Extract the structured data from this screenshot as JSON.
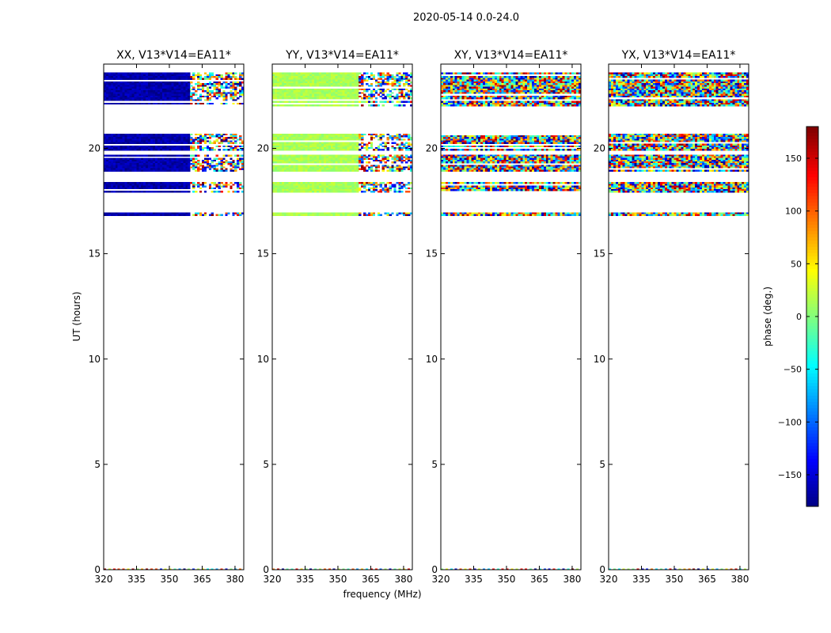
{
  "figure": {
    "suptitle": "2020-05-14 0.0-24.0"
  },
  "chart_data": {
    "type": "heatmap",
    "title": "2020-05-14 0.0-24.0",
    "xlabel": "frequency (MHz)",
    "ylabel": "UT (hours)",
    "xlim": [
      320,
      384
    ],
    "ylim": [
      0,
      24
    ],
    "xticks": [
      320,
      335,
      350,
      365,
      380
    ],
    "yticks": [
      0,
      5,
      10,
      15,
      20
    ],
    "panels": [
      {
        "title": "XX, V13*V14=EA11*",
        "pol": "XX",
        "base_phase": -165,
        "scatter": 30
      },
      {
        "title": "YY, V13*V14=EA11*",
        "pol": "YY",
        "base_phase": 15,
        "scatter": 25
      },
      {
        "title": "XY, V13*V14=EA11*",
        "pol": "XY",
        "base_phase": 0,
        "scatter": 180
      },
      {
        "title": "YX, V13*V14=EA11*",
        "pol": "YX",
        "base_phase": 0,
        "scatter": 180
      }
    ],
    "data_bands_ut_hours": [
      [
        22.0,
        23.6
      ],
      [
        19.9,
        20.7
      ],
      [
        18.9,
        19.7
      ],
      [
        17.9,
        18.4
      ],
      [
        16.8,
        16.95
      ]
    ],
    "colorbar": {
      "label": "phase (deg.)",
      "range": [
        -180,
        180
      ],
      "ticks": [
        -150,
        -100,
        -50,
        0,
        50,
        100,
        150
      ],
      "tick_labels": [
        "−150",
        "−100",
        "−50",
        "0",
        "50",
        "100",
        "150"
      ],
      "colormap": "jet"
    }
  }
}
